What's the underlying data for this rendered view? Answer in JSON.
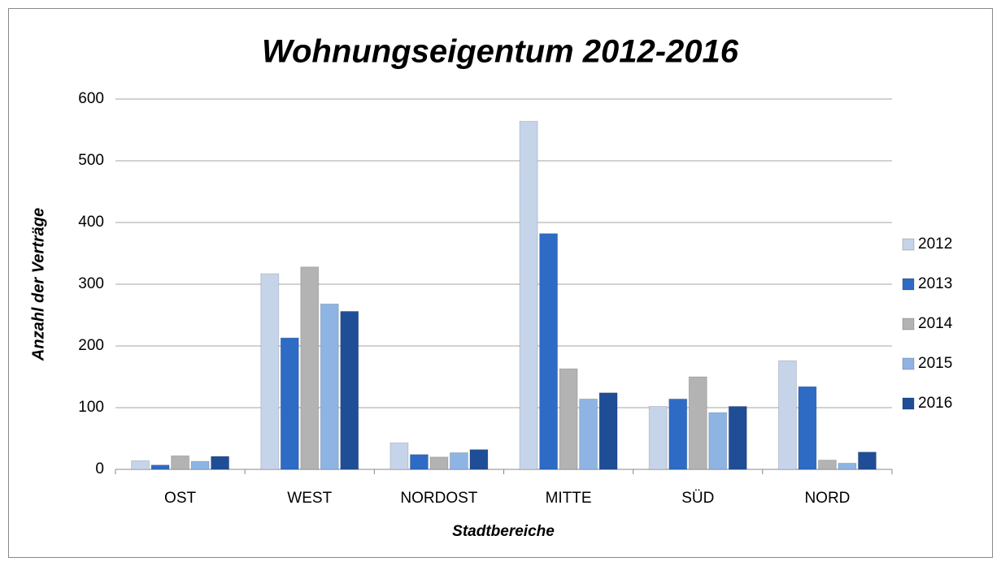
{
  "chart_data": {
    "type": "bar",
    "title": "Wohnungseigentum 2012-2016",
    "x_label": "Stadtbereiche",
    "y_label": "Anzahl der Verträge",
    "categories": [
      "OST",
      "WEST",
      "NORDOST",
      "MITTE",
      "SÜD",
      "NORD"
    ],
    "series": [
      {
        "name": "2012",
        "color": "#c6d4ea",
        "values": [
          14,
          317,
          43,
          564,
          102,
          176
        ]
      },
      {
        "name": "2013",
        "color": "#2e6bc4",
        "values": [
          7,
          213,
          24,
          382,
          114,
          134
        ]
      },
      {
        "name": "2014",
        "color": "#b3b3b3",
        "values": [
          22,
          328,
          20,
          163,
          150,
          15
        ]
      },
      {
        "name": "2015",
        "color": "#8eb4e3",
        "values": [
          13,
          268,
          27,
          114,
          92,
          10
        ]
      },
      {
        "name": "2016",
        "color": "#1f4e96",
        "values": [
          21,
          256,
          32,
          124,
          102,
          28
        ]
      }
    ],
    "ylim": [
      0,
      600
    ],
    "yticks": [
      0,
      100,
      200,
      300,
      400,
      500,
      600
    ],
    "grid": true,
    "legend": "right"
  }
}
